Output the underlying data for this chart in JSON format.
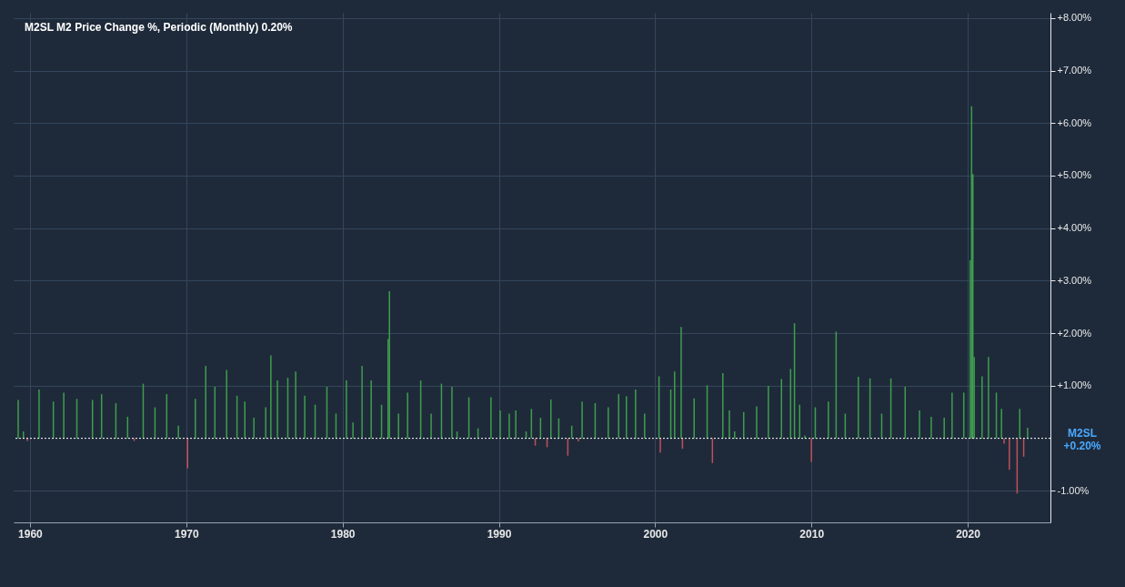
{
  "chart_data": {
    "type": "bar",
    "series": [
      {
        "color": "#3f9e4d",
        "x": [
          "1959-04",
          "1959-08",
          "1960-08",
          "1961-07",
          "1962-03",
          "1963-01",
          "1964-01",
          "1964-08",
          "1965-07",
          "1966-04",
          "1967-04",
          "1968-01",
          "1968-10",
          "1969-07",
          "1970-08",
          "1971-04",
          "1971-11",
          "1972-08",
          "1973-04",
          "1973-10",
          "1974-05",
          "1975-02",
          "1975-06",
          "1975-11",
          "1976-07",
          "1977-01",
          "1977-08",
          "1978-04",
          "1979-01",
          "1979-08",
          "1980-04",
          "1980-09",
          "1981-04",
          "1981-11",
          "1982-07",
          "1982-12",
          "1983-01",
          "1983-08",
          "1984-03",
          "1985-01",
          "1985-09",
          "1986-05",
          "1987-01",
          "1987-05",
          "1988-02",
          "1988-09",
          "1989-07",
          "1990-02",
          "1990-09",
          "1991-02",
          "1991-10",
          "1992-02",
          "1992-09",
          "1993-05",
          "1993-11",
          "1994-09",
          "1995-05",
          "1996-03",
          "1997-01",
          "1997-09",
          "1998-03",
          "1998-10",
          "1999-05",
          "2000-04",
          "2001-01",
          "2001-04",
          "2001-09",
          "2002-07",
          "2003-05",
          "2004-05",
          "2004-10",
          "2005-02",
          "2005-09",
          "2006-07",
          "2007-04",
          "2008-02",
          "2008-09",
          "2008-12",
          "2009-04",
          "2009-08",
          "2010-04",
          "2011-02",
          "2011-08",
          "2012-03",
          "2013-01",
          "2013-10",
          "2014-07",
          "2015-02",
          "2016-01",
          "2016-12",
          "2017-09",
          "2018-07",
          "2019-01",
          "2019-10",
          "2020-03",
          "2020-04",
          "2020-05",
          "2020-06",
          "2020-12",
          "2021-05",
          "2021-11",
          "2022-03",
          "2023-05",
          "2023-11"
        ],
        "values": [
          0.73,
          0.13,
          0.93,
          0.7,
          0.87,
          0.75,
          0.73,
          0.84,
          0.67,
          0.41,
          1.04,
          0.59,
          0.84,
          0.24,
          0.75,
          1.38,
          0.98,
          1.3,
          0.81,
          0.7,
          0.39,
          0.59,
          1.58,
          1.1,
          1.15,
          1.27,
          0.81,
          0.64,
          0.98,
          0.47,
          1.1,
          0.3,
          1.38,
          1.1,
          0.64,
          1.89,
          2.8,
          0.47,
          0.87,
          1.1,
          0.47,
          1.04,
          0.98,
          0.13,
          0.78,
          0.19,
          0.78,
          0.53,
          0.47,
          0.53,
          0.13,
          0.56,
          0.39,
          0.74,
          0.38,
          0.24,
          0.7,
          0.67,
          0.59,
          0.84,
          0.8,
          0.93,
          0.47,
          1.18,
          0.93,
          1.27,
          2.12,
          0.76,
          1.01,
          1.24,
          0.53,
          0.13,
          0.5,
          0.61,
          1.0,
          1.13,
          1.32,
          2.19,
          0.64,
          0.05,
          0.59,
          0.7,
          2.03,
          0.47,
          1.17,
          1.14,
          0.47,
          1.14,
          0.98,
          0.53,
          0.41,
          0.39,
          0.87,
          0.87,
          3.39,
          6.32,
          5.03,
          1.55,
          1.18,
          1.55,
          0.87,
          0.56,
          0.56,
          0.2
        ]
      },
      {
        "color": "#c0505a",
        "x": [
          "1959-11",
          "1966-09",
          "1970-02",
          "1992-05",
          "1993-02",
          "1994-06",
          "1995-02",
          "2000-05",
          "2001-10",
          "2003-09",
          "2010-01",
          "2022-05",
          "2022-09",
          "2023-03",
          "2023-08"
        ],
        "values": [
          -0.05,
          -0.05,
          -0.57,
          -0.14,
          -0.17,
          -0.33,
          -0.06,
          -0.27,
          -0.2,
          -0.47,
          -0.45,
          -0.1,
          -0.6,
          -1.05,
          -0.35
        ]
      }
    ],
    "xlim": [
      "1959-04",
      "2025-01"
    ],
    "xticks": [
      "1960",
      "1970",
      "1980",
      "1990",
      "2000",
      "2010",
      "2020"
    ],
    "ylim": [
      -1.6,
      8.1
    ],
    "yticks": [
      {
        "value": -1,
        "label": "-1.00%"
      },
      {
        "value": 1,
        "label": "+1.00%"
      },
      {
        "value": 2,
        "label": "+2.00%"
      },
      {
        "value": 3,
        "label": "+3.00%"
      },
      {
        "value": 4,
        "label": "+4.00%"
      },
      {
        "value": 5,
        "label": "+5.00%"
      },
      {
        "value": 6,
        "label": "+6.00%"
      },
      {
        "value": 7,
        "label": "+7.00%"
      },
      {
        "value": 8,
        "label": "+8.00%"
      }
    ],
    "grid": true,
    "annotations": [
      "M2SL  M2  Price Change %, Periodic (Monthly)  0.20%",
      "M2SL\n+0.20%"
    ],
    "ref_lines": [
      {
        "axis": "y",
        "value": 0,
        "color": "#ffffff",
        "line_style": "dotted"
      }
    ]
  }
}
